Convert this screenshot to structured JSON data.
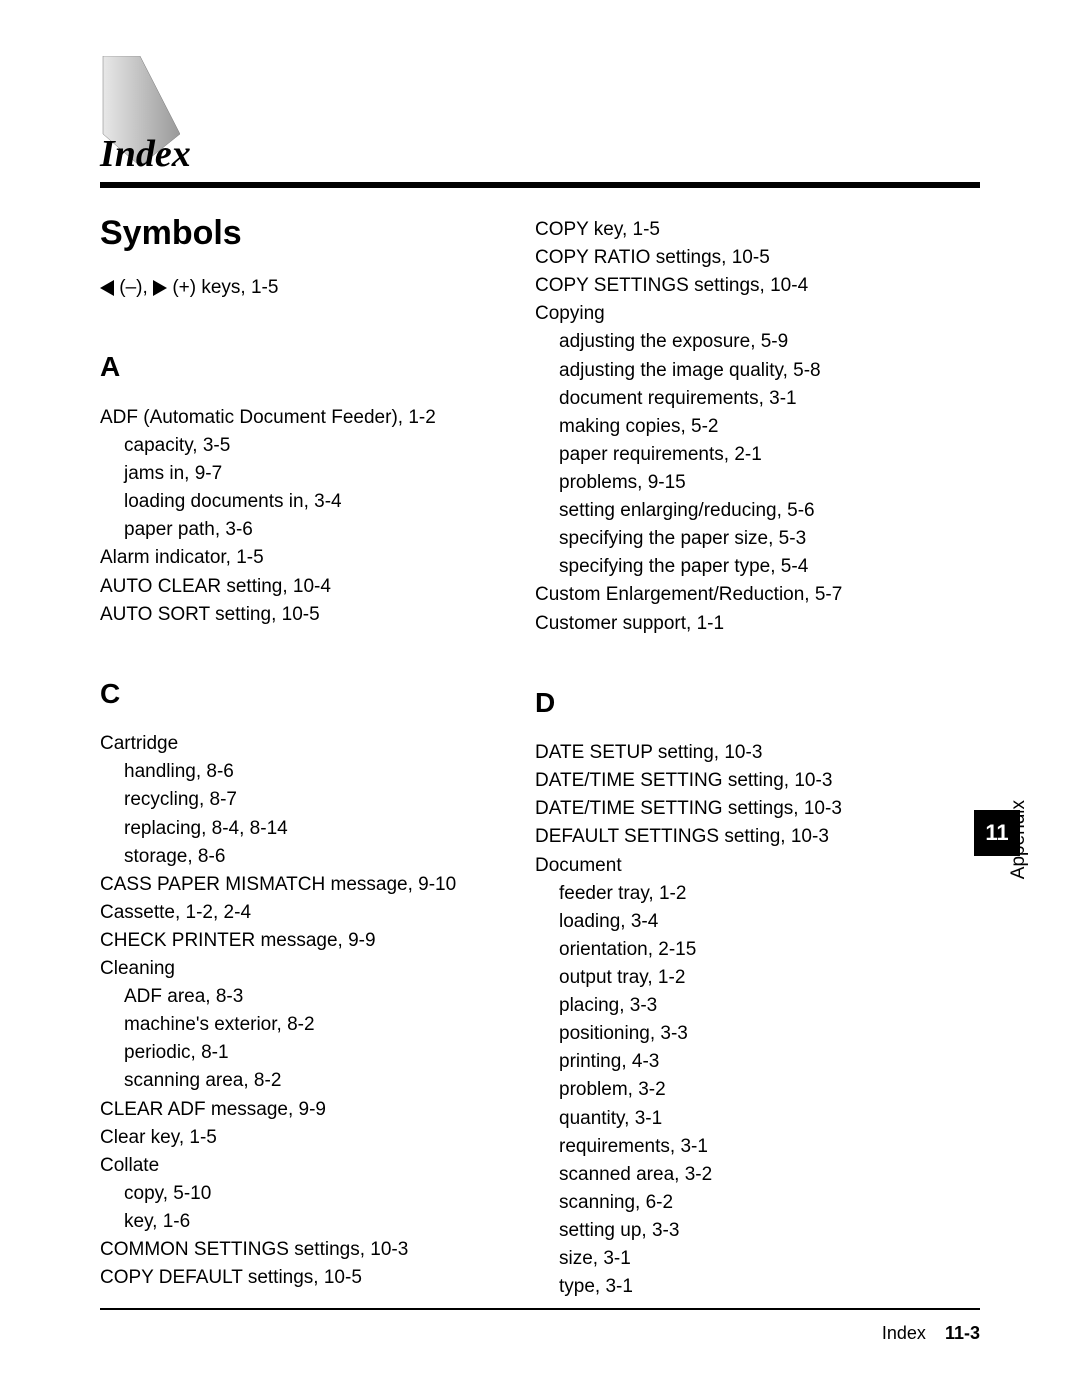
{
  "title": "Index",
  "sidebar": {
    "label": "Appendix",
    "number": "11"
  },
  "footer": {
    "label": "Index",
    "page": "11-3"
  },
  "symbols": {
    "header": "Symbols",
    "keys_text": " (–), ",
    "keys_text2": " (+) keys, 1-5"
  },
  "sections": {
    "A": {
      "header": "A",
      "lines": [
        {
          "text": "ADF (Automatic Document Feeder), 1-2",
          "sub": false
        },
        {
          "text": "capacity, 3-5",
          "sub": true
        },
        {
          "text": "jams in, 9-7",
          "sub": true
        },
        {
          "text": "loading documents in, 3-4",
          "sub": true
        },
        {
          "text": "paper path, 3-6",
          "sub": true
        },
        {
          "text": "Alarm indicator, 1-5",
          "sub": false
        },
        {
          "text": "AUTO CLEAR setting, 10-4",
          "sub": false
        },
        {
          "text": "AUTO SORT setting, 10-5",
          "sub": false
        }
      ]
    },
    "C": {
      "header": "C",
      "lines": [
        {
          "text": "Cartridge",
          "sub": false
        },
        {
          "text": "handling, 8-6",
          "sub": true
        },
        {
          "text": "recycling, 8-7",
          "sub": true
        },
        {
          "text": "replacing, 8-4, 8-14",
          "sub": true
        },
        {
          "text": "storage, 8-6",
          "sub": true
        },
        {
          "text": "CASS PAPER MISMATCH message, 9-10",
          "sub": false
        },
        {
          "text": "Cassette, 1-2, 2-4",
          "sub": false
        },
        {
          "text": "CHECK PRINTER message, 9-9",
          "sub": false
        },
        {
          "text": "Cleaning",
          "sub": false
        },
        {
          "text": "ADF area, 8-3",
          "sub": true
        },
        {
          "text": "machine's exterior, 8-2",
          "sub": true
        },
        {
          "text": "periodic, 8-1",
          "sub": true
        },
        {
          "text": "scanning area, 8-2",
          "sub": true
        },
        {
          "text": "CLEAR ADF message, 9-9",
          "sub": false
        },
        {
          "text": "Clear key, 1-5",
          "sub": false
        },
        {
          "text": "Collate",
          "sub": false
        },
        {
          "text": "copy, 5-10",
          "sub": true
        },
        {
          "text": "key, 1-6",
          "sub": true
        },
        {
          "text": "COMMON SETTINGS settings, 10-3",
          "sub": false
        },
        {
          "text": "COPY DEFAULT settings, 10-5",
          "sub": false
        }
      ]
    },
    "C2": {
      "lines": [
        {
          "text": "COPY key, 1-5",
          "sub": false
        },
        {
          "text": "COPY RATIO settings, 10-5",
          "sub": false
        },
        {
          "text": "COPY SETTINGS settings, 10-4",
          "sub": false
        },
        {
          "text": "Copying",
          "sub": false
        },
        {
          "text": "adjusting the exposure, 5-9",
          "sub": true
        },
        {
          "text": "adjusting the image quality, 5-8",
          "sub": true
        },
        {
          "text": "document requirements, 3-1",
          "sub": true
        },
        {
          "text": "making copies, 5-2",
          "sub": true
        },
        {
          "text": "paper requirements, 2-1",
          "sub": true
        },
        {
          "text": "problems, 9-15",
          "sub": true
        },
        {
          "text": "setting enlarging/reducing, 5-6",
          "sub": true
        },
        {
          "text": "specifying the paper size, 5-3",
          "sub": true
        },
        {
          "text": "specifying the paper type, 5-4",
          "sub": true
        },
        {
          "text": "Custom Enlargement/Reduction, 5-7",
          "sub": false
        },
        {
          "text": "Customer support, 1-1",
          "sub": false
        }
      ]
    },
    "D": {
      "header": "D",
      "lines": [
        {
          "text": "DATE SETUP setting, 10-3",
          "sub": false
        },
        {
          "text": "DATE/TIME SETTING setting, 10-3",
          "sub": false
        },
        {
          "text": "DATE/TIME SETTING settings, 10-3",
          "sub": false
        },
        {
          "text": "DEFAULT SETTINGS setting, 10-3",
          "sub": false
        },
        {
          "text": "Document",
          "sub": false
        },
        {
          "text": "feeder tray, 1-2",
          "sub": true
        },
        {
          "text": "loading, 3-4",
          "sub": true
        },
        {
          "text": "orientation, 2-15",
          "sub": true
        },
        {
          "text": "output tray, 1-2",
          "sub": true
        },
        {
          "text": "placing, 3-3",
          "sub": true
        },
        {
          "text": "positioning, 3-3",
          "sub": true
        },
        {
          "text": "printing, 4-3",
          "sub": true
        },
        {
          "text": "problem, 3-2",
          "sub": true
        },
        {
          "text": "quantity, 3-1",
          "sub": true
        },
        {
          "text": "requirements, 3-1",
          "sub": true
        },
        {
          "text": "scanned area, 3-2",
          "sub": true
        },
        {
          "text": "scanning, 6-2",
          "sub": true
        },
        {
          "text": "setting up, 3-3",
          "sub": true
        },
        {
          "text": "size, 3-1",
          "sub": true
        },
        {
          "text": "type, 3-1",
          "sub": true
        }
      ]
    }
  }
}
